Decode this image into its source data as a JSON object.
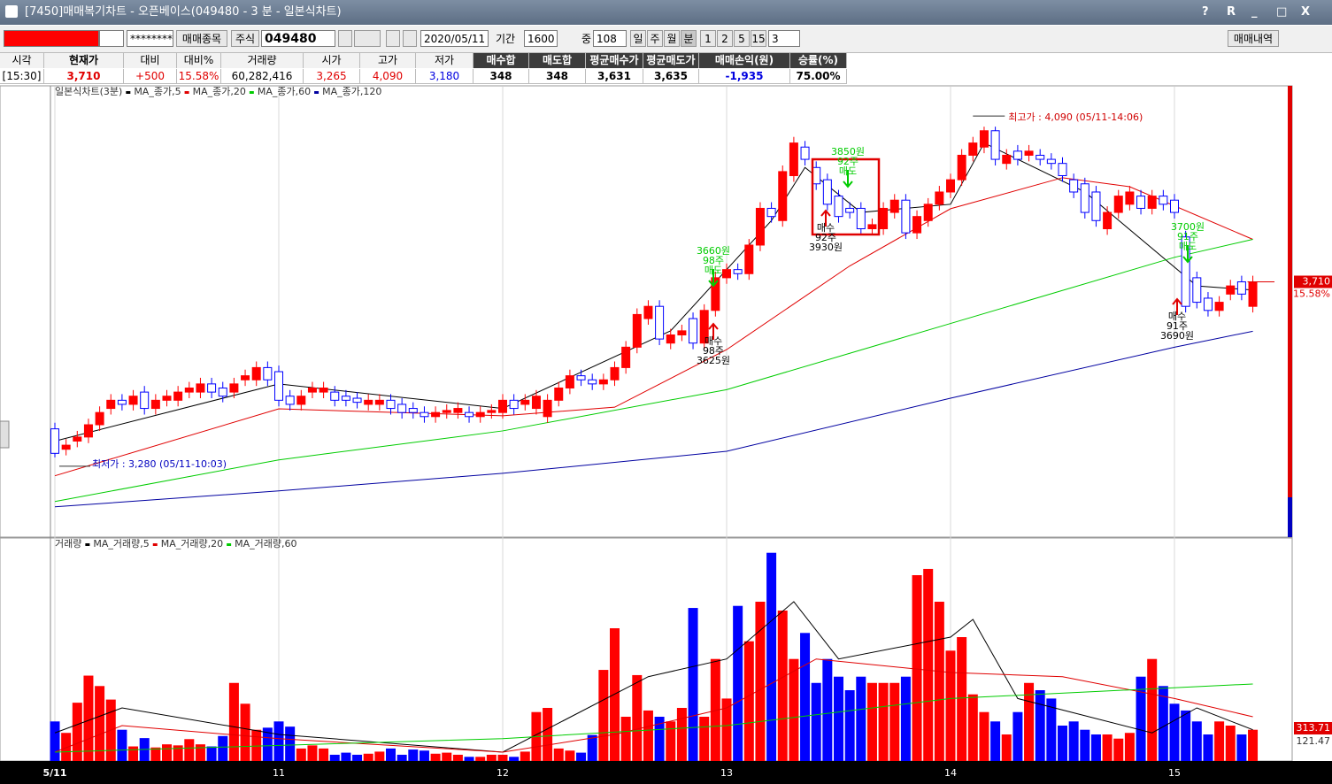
{
  "window": {
    "title": "[7450]매매복기차트 - 오픈베이스(049480 - 3 분 - 일본식차트)",
    "controls": [
      "?",
      "R",
      "_",
      "□",
      "X"
    ]
  },
  "toolbar": {
    "account": "********",
    "buttons": [
      "매매종목",
      "주식"
    ],
    "code": "049480",
    "date": "2020/05/11",
    "period_label": "기간",
    "period": "1600",
    "count_label": "중",
    "count": "108",
    "intervals": [
      "일",
      "주",
      "월",
      "분",
      "1",
      "2",
      "5",
      "15",
      "3"
    ],
    "trade_list": "매매내역"
  },
  "info": {
    "headers": [
      "시각",
      "현재가",
      "대비",
      "대비%",
      "거래량",
      "시가",
      "고가",
      "저가",
      "매수합",
      "매도합",
      "평균매수가",
      "평균매도가",
      "매매손익(원)",
      "승률(%)"
    ],
    "values": [
      "[15:30]",
      "3,710",
      "+500",
      "15.58%",
      "60,282,416",
      "3,265",
      "4,090",
      "3,180",
      "348",
      "348",
      "3,631",
      "3,635",
      "-1,935",
      "75.00%"
    ],
    "value_colors": [
      "#000",
      "#e00000",
      "#e00000",
      "#e00000",
      "#000",
      "#e00000",
      "#e00000",
      "#0000e0",
      "#000",
      "#000",
      "#000",
      "#000",
      "#0000e0",
      "#000"
    ]
  },
  "chart_data": [
    {
      "type": "candlestick",
      "title": "일본식차트(3분)",
      "up_color": "#ff0000",
      "down_color": "#0000ff",
      "ylim": [
        3100,
        4190
      ],
      "last_label": "3,710",
      "change_label": "15.58%",
      "last_value": 3710,
      "date_ticks": [
        {
          "value": 0,
          "label": "5/11"
        },
        {
          "value": 20,
          "label": "11"
        },
        {
          "value": 40,
          "label": "12"
        },
        {
          "value": 60,
          "label": "13"
        },
        {
          "value": 80,
          "label": "14"
        },
        {
          "value": 100,
          "label": "15"
        }
      ],
      "open": [
        3350,
        3300,
        3320,
        3330,
        3360,
        3400,
        3420,
        3410,
        3440,
        3400,
        3420,
        3420,
        3440,
        3440,
        3460,
        3450,
        3440,
        3470,
        3470,
        3500,
        3490,
        3430,
        3410,
        3440,
        3440,
        3440,
        3430,
        3425,
        3410,
        3410,
        3420,
        3410,
        3400,
        3390,
        3380,
        3390,
        3390,
        3390,
        3380,
        3390,
        3390,
        3420,
        3410,
        3400,
        3380,
        3420,
        3450,
        3480,
        3470,
        3460,
        3470,
        3500,
        3550,
        3620,
        3650,
        3560,
        3580,
        3620,
        3560,
        3640,
        3720,
        3740,
        3730,
        3800,
        3890,
        3860,
        3970,
        4040,
        3990,
        3960,
        3920,
        3890,
        3890,
        3840,
        3840,
        3880,
        3910,
        3830,
        3860,
        3900,
        3930,
        3960,
        4020,
        4040,
        4080,
        4000,
        4030,
        4020,
        4020,
        4010,
        4000,
        3960,
        3950,
        3930,
        3840,
        3880,
        3900,
        3920,
        3890,
        3920,
        3910,
        3820,
        3720,
        3670,
        3640,
        3680,
        3710,
        3650
      ],
      "high": [
        3365,
        3325,
        3345,
        3375,
        3405,
        3435,
        3435,
        3445,
        3455,
        3435,
        3445,
        3455,
        3465,
        3475,
        3475,
        3465,
        3475,
        3495,
        3515,
        3515,
        3505,
        3445,
        3445,
        3465,
        3465,
        3455,
        3445,
        3440,
        3435,
        3435,
        3435,
        3425,
        3415,
        3405,
        3405,
        3410,
        3415,
        3405,
        3405,
        3410,
        3435,
        3435,
        3435,
        3445,
        3435,
        3465,
        3495,
        3495,
        3485,
        3485,
        3515,
        3565,
        3645,
        3665,
        3665,
        3595,
        3605,
        3635,
        3655,
        3735,
        3755,
        3755,
        3815,
        3905,
        3905,
        3995,
        4065,
        4055,
        4005,
        3975,
        3935,
        3905,
        3905,
        3865,
        3905,
        3925,
        3925,
        3885,
        3915,
        3945,
        3975,
        4035,
        4065,
        4090,
        4090,
        4035,
        4045,
        4045,
        4035,
        4025,
        4015,
        3975,
        3965,
        3945,
        3895,
        3935,
        3945,
        3935,
        3935,
        3935,
        3925,
        3835,
        3735,
        3685,
        3675,
        3715,
        3725,
        3725
      ],
      "low": [
        3280,
        3285,
        3305,
        3315,
        3345,
        3385,
        3395,
        3395,
        3385,
        3385,
        3405,
        3405,
        3425,
        3425,
        3425,
        3415,
        3425,
        3455,
        3455,
        3455,
        3405,
        3395,
        3395,
        3425,
        3425,
        3405,
        3405,
        3400,
        3395,
        3395,
        3385,
        3375,
        3375,
        3365,
        3365,
        3375,
        3375,
        3365,
        3365,
        3375,
        3375,
        3385,
        3395,
        3385,
        3365,
        3405,
        3435,
        3455,
        3445,
        3445,
        3455,
        3485,
        3535,
        3605,
        3555,
        3545,
        3565,
        3545,
        3545,
        3625,
        3705,
        3715,
        3715,
        3785,
        3855,
        3845,
        3955,
        3995,
        3935,
        3885,
        3855,
        3865,
        3825,
        3825,
        3825,
        3865,
        3815,
        3815,
        3845,
        3885,
        3915,
        3945,
        4005,
        4025,
        3995,
        3985,
        3995,
        4005,
        3995,
        3985,
        3955,
        3915,
        3865,
        3845,
        3825,
        3865,
        3885,
        3875,
        3875,
        3885,
        3865,
        3635,
        3645,
        3625,
        3625,
        3665,
        3665,
        3635
      ],
      "close": [
        3290,
        3310,
        3330,
        3360,
        3390,
        3420,
        3410,
        3430,
        3400,
        3420,
        3430,
        3440,
        3450,
        3460,
        3440,
        3430,
        3460,
        3480,
        3500,
        3470,
        3420,
        3410,
        3430,
        3450,
        3450,
        3420,
        3420,
        3415,
        3420,
        3420,
        3400,
        3390,
        3390,
        3380,
        3390,
        3395,
        3400,
        3380,
        3390,
        3395,
        3420,
        3400,
        3420,
        3430,
        3420,
        3450,
        3480,
        3470,
        3460,
        3470,
        3500,
        3550,
        3630,
        3650,
        3570,
        3580,
        3590,
        3560,
        3640,
        3720,
        3740,
        3730,
        3800,
        3890,
        3870,
        3980,
        4050,
        4010,
        3950,
        3900,
        3870,
        3880,
        3840,
        3850,
        3890,
        3910,
        3830,
        3870,
        3900,
        3930,
        3960,
        4020,
        4050,
        4080,
        4010,
        4020,
        4010,
        4030,
        4010,
        4000,
        3970,
        3930,
        3880,
        3860,
        3880,
        3920,
        3930,
        3890,
        3920,
        3900,
        3880,
        3650,
        3660,
        3640,
        3660,
        3700,
        3680,
        3710
      ],
      "series": [
        {
          "name": "MA_종가,5",
          "color": "#000000",
          "x": [
            0,
            20,
            40,
            55,
            64,
            67,
            72,
            80,
            83,
            92,
            102,
            107
          ],
          "values": [
            3320,
            3460,
            3400,
            3590,
            3860,
            3990,
            3880,
            3900,
            4050,
            3930,
            3700,
            3690
          ]
        },
        {
          "name": "MA_종가,20",
          "color": "#e00000",
          "x": [
            0,
            20,
            40,
            50,
            60,
            71,
            80,
            90,
            96,
            107
          ],
          "values": [
            3235,
            3399,
            3382,
            3403,
            3544,
            3749,
            3889,
            3965,
            3943,
            3814
          ]
        },
        {
          "name": "MA_종가,60",
          "color": "#00cc00",
          "x": [
            0,
            20,
            40,
            60,
            80,
            100,
            107
          ],
          "values": [
            3172,
            3274,
            3345,
            3446,
            3608,
            3770,
            3814
          ]
        },
        {
          "name": "MA_종가,120",
          "color": "#0000a0",
          "x": [
            0,
            20,
            40,
            60,
            80,
            100,
            107
          ],
          "values": [
            3159,
            3198,
            3241,
            3295,
            3425,
            3550,
            3589
          ]
        }
      ],
      "annotations": [
        {
          "text": "최저가 : 3,280 (05/11-10:03)",
          "color": "#0000c0"
        },
        {
          "text": "최고가 : 4,090 (05/11-14:06)",
          "color": "#d00000"
        }
      ],
      "trades": [
        {
          "side": "매도",
          "price": "3660원",
          "qty": "98주"
        },
        {
          "side": "매수",
          "price": "3625원",
          "qty": "98주"
        },
        {
          "side": "매도",
          "price": "3850원",
          "qty": "92주"
        },
        {
          "side": "매수",
          "price": "3930원",
          "qty": "92주"
        },
        {
          "side": "매도",
          "price": "3700원",
          "qty": "91주"
        },
        {
          "side": "매수",
          "price": "3690원",
          "qty": "91주"
        }
      ]
    },
    {
      "type": "bar",
      "title": "거래량",
      "ylim": [
        0,
        2040
      ],
      "right_labels": [
        "313.71",
        "121.47"
      ],
      "values": [
        380,
        270,
        560,
        820,
        720,
        590,
        300,
        140,
        220,
        130,
        160,
        150,
        210,
        160,
        140,
        240,
        750,
        550,
        300,
        320,
        380,
        330,
        120,
        150,
        120,
        60,
        80,
        60,
        70,
        90,
        120,
        60,
        110,
        100,
        70,
        80,
        60,
        40,
        40,
        60,
        60,
        40,
        90,
        470,
        510,
        120,
        100,
        80,
        250,
        875,
        1275,
        425,
        825,
        485,
        425,
        380,
        510,
        1470,
        425,
        980,
        600,
        1490,
        1150,
        1530,
        2000,
        1445,
        980,
        1230,
        750,
        980,
        810,
        680,
        810,
        750,
        750,
        750,
        810,
        1785,
        1845,
        1530,
        1060,
        1190,
        640,
        470,
        380,
        255,
        470,
        750,
        680,
        600,
        340,
        380,
        300,
        255,
        255,
        215,
        270,
        810,
        980,
        720,
        550,
        485,
        380,
        255,
        380,
        340,
        255,
        300
      ],
      "series": [
        {
          "name": "MA_거래량,5",
          "color": "#000000",
          "x": [
            0,
            6,
            20,
            40,
            53,
            60,
            66,
            70,
            80,
            82,
            86,
            98,
            102,
            107
          ],
          "values": [
            270,
            510,
            255,
            85,
            810,
            980,
            1530,
            980,
            1190,
            1360,
            600,
            270,
            510,
            300
          ]
        },
        {
          "name": "MA_거래량,20",
          "color": "#e00000",
          "x": [
            0,
            6,
            20,
            40,
            50,
            60,
            68,
            80,
            90,
            100,
            107
          ],
          "values": [
            85,
            340,
            215,
            85,
            255,
            510,
            980,
            850,
            810,
            600,
            425
          ]
        },
        {
          "name": "MA_거래량,60",
          "color": "#00cc00",
          "x": [
            0,
            40,
            60,
            80,
            107
          ],
          "values": [
            85,
            215,
            340,
            600,
            740
          ]
        }
      ]
    }
  ]
}
